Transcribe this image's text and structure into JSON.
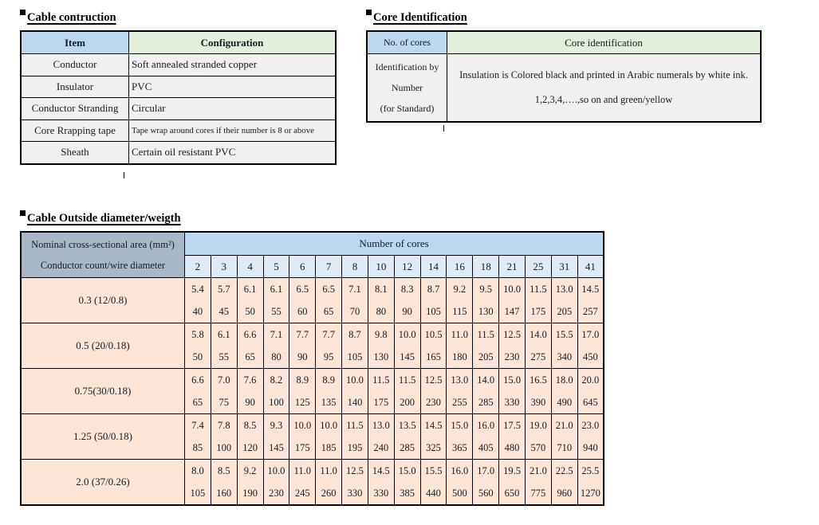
{
  "page": {
    "background": "#ffffff"
  },
  "colors": {
    "header_blue": "#BDD7EE",
    "header_green": "#E2EFDA",
    "corner_gray": "#A9B8C6",
    "count_blue": "#DEEAF6",
    "row_peach": "#FCE4D6",
    "cell_gray": "#F0F0F0",
    "border": "#000000"
  },
  "cable_construction": {
    "title": "Cable contruction",
    "headers": [
      "Item",
      "Configuration"
    ],
    "rows": [
      {
        "item": "Conductor",
        "config": "Soft annealed stranded copper"
      },
      {
        "item": "Insulator",
        "config": "PVC"
      },
      {
        "item": "Conductor Stranding",
        "config": "Circular"
      },
      {
        "item": "Core Rrapping tape",
        "config": "Tape wrap around cores if their number is 8 or above"
      },
      {
        "item": "Sheath",
        "config": "Certain oil resistant PVC"
      }
    ]
  },
  "core_identification": {
    "title": "Core Identification",
    "headers": [
      "No. of cores",
      "Core identification"
    ],
    "row": {
      "label_lines": [
        "Identification by",
        "Number",
        "(for Standard)"
      ],
      "value_lines": [
        "Insulation is Colored black and printed in Arabic numerals by white ink.",
        "1,2,3,4,….,so on and green/yellow"
      ]
    }
  },
  "cable_od_weight": {
    "title": "Cable Outside diameter/weigth",
    "corner_lines": [
      "Nominal cross-sectional area (mm²)",
      "Conductor count/wire diameter"
    ],
    "cores_banner": "Number of cores",
    "core_counts": [
      "2",
      "3",
      "4",
      "5",
      "6",
      "7",
      "8",
      "10",
      "12",
      "14",
      "16",
      "18",
      "21",
      "25",
      "31",
      "41"
    ],
    "rows": [
      {
        "label": "0.3 (12/0.8)",
        "diameters": [
          "5.4",
          "5.7",
          "6.1",
          "6.1",
          "6.5",
          "6.5",
          "7.1",
          "8.1",
          "8.3",
          "8.7",
          "9.2",
          "9.5",
          "10.0",
          "11.5",
          "13.0",
          "14.5"
        ],
        "weights": [
          "40",
          "45",
          "50",
          "55",
          "60",
          "65",
          "70",
          "80",
          "90",
          "105",
          "115",
          "130",
          "147",
          "175",
          "205",
          "257"
        ]
      },
      {
        "label": "0.5 (20/0.18)",
        "diameters": [
          "5.8",
          "6.1",
          "6.6",
          "7.1",
          "7.7",
          "7.7",
          "8.7",
          "9.8",
          "10.0",
          "10.5",
          "11.0",
          "11.5",
          "12.5",
          "14.0",
          "15.5",
          "17.0"
        ],
        "weights": [
          "50",
          "55",
          "65",
          "80",
          "90",
          "95",
          "105",
          "130",
          "145",
          "165",
          "180",
          "205",
          "230",
          "275",
          "340",
          "450"
        ]
      },
      {
        "label": "0.75(30/0.18)",
        "diameters": [
          "6.6",
          "7.0",
          "7.6",
          "8.2",
          "8.9",
          "8.9",
          "10.0",
          "11.5",
          "11.5",
          "12.5",
          "13.0",
          "14.0",
          "15.0",
          "16.5",
          "18.0",
          "20.0"
        ],
        "weights": [
          "65",
          "75",
          "90",
          "100",
          "125",
          "135",
          "140",
          "175",
          "200",
          "230",
          "255",
          "285",
          "330",
          "390",
          "490",
          "645"
        ]
      },
      {
        "label": "1.25 (50/0.18)",
        "diameters": [
          "7.4",
          "7.8",
          "8.5",
          "9.3",
          "10.0",
          "10.0",
          "11.5",
          "13.0",
          "13.5",
          "14.5",
          "15.0",
          "16.0",
          "17.5",
          "19.0",
          "21.0",
          "23.0"
        ],
        "weights": [
          "85",
          "100",
          "120",
          "145",
          "175",
          "185",
          "195",
          "240",
          "285",
          "325",
          "365",
          "405",
          "480",
          "570",
          "710",
          "940"
        ]
      },
      {
        "label": "2.0 (37/0.26)",
        "diameters": [
          "8.0",
          "8.5",
          "9.2",
          "10.0",
          "11.0",
          "11.0",
          "12.5",
          "14.5",
          "15.0",
          "15.5",
          "16.0",
          "17.0",
          "19.5",
          "21.0",
          "22.5",
          "25.5"
        ],
        "weights": [
          "105",
          "160",
          "190",
          "230",
          "245",
          "260",
          "330",
          "330",
          "385",
          "440",
          "500",
          "560",
          "650",
          "775",
          "960",
          "1270"
        ]
      }
    ]
  }
}
